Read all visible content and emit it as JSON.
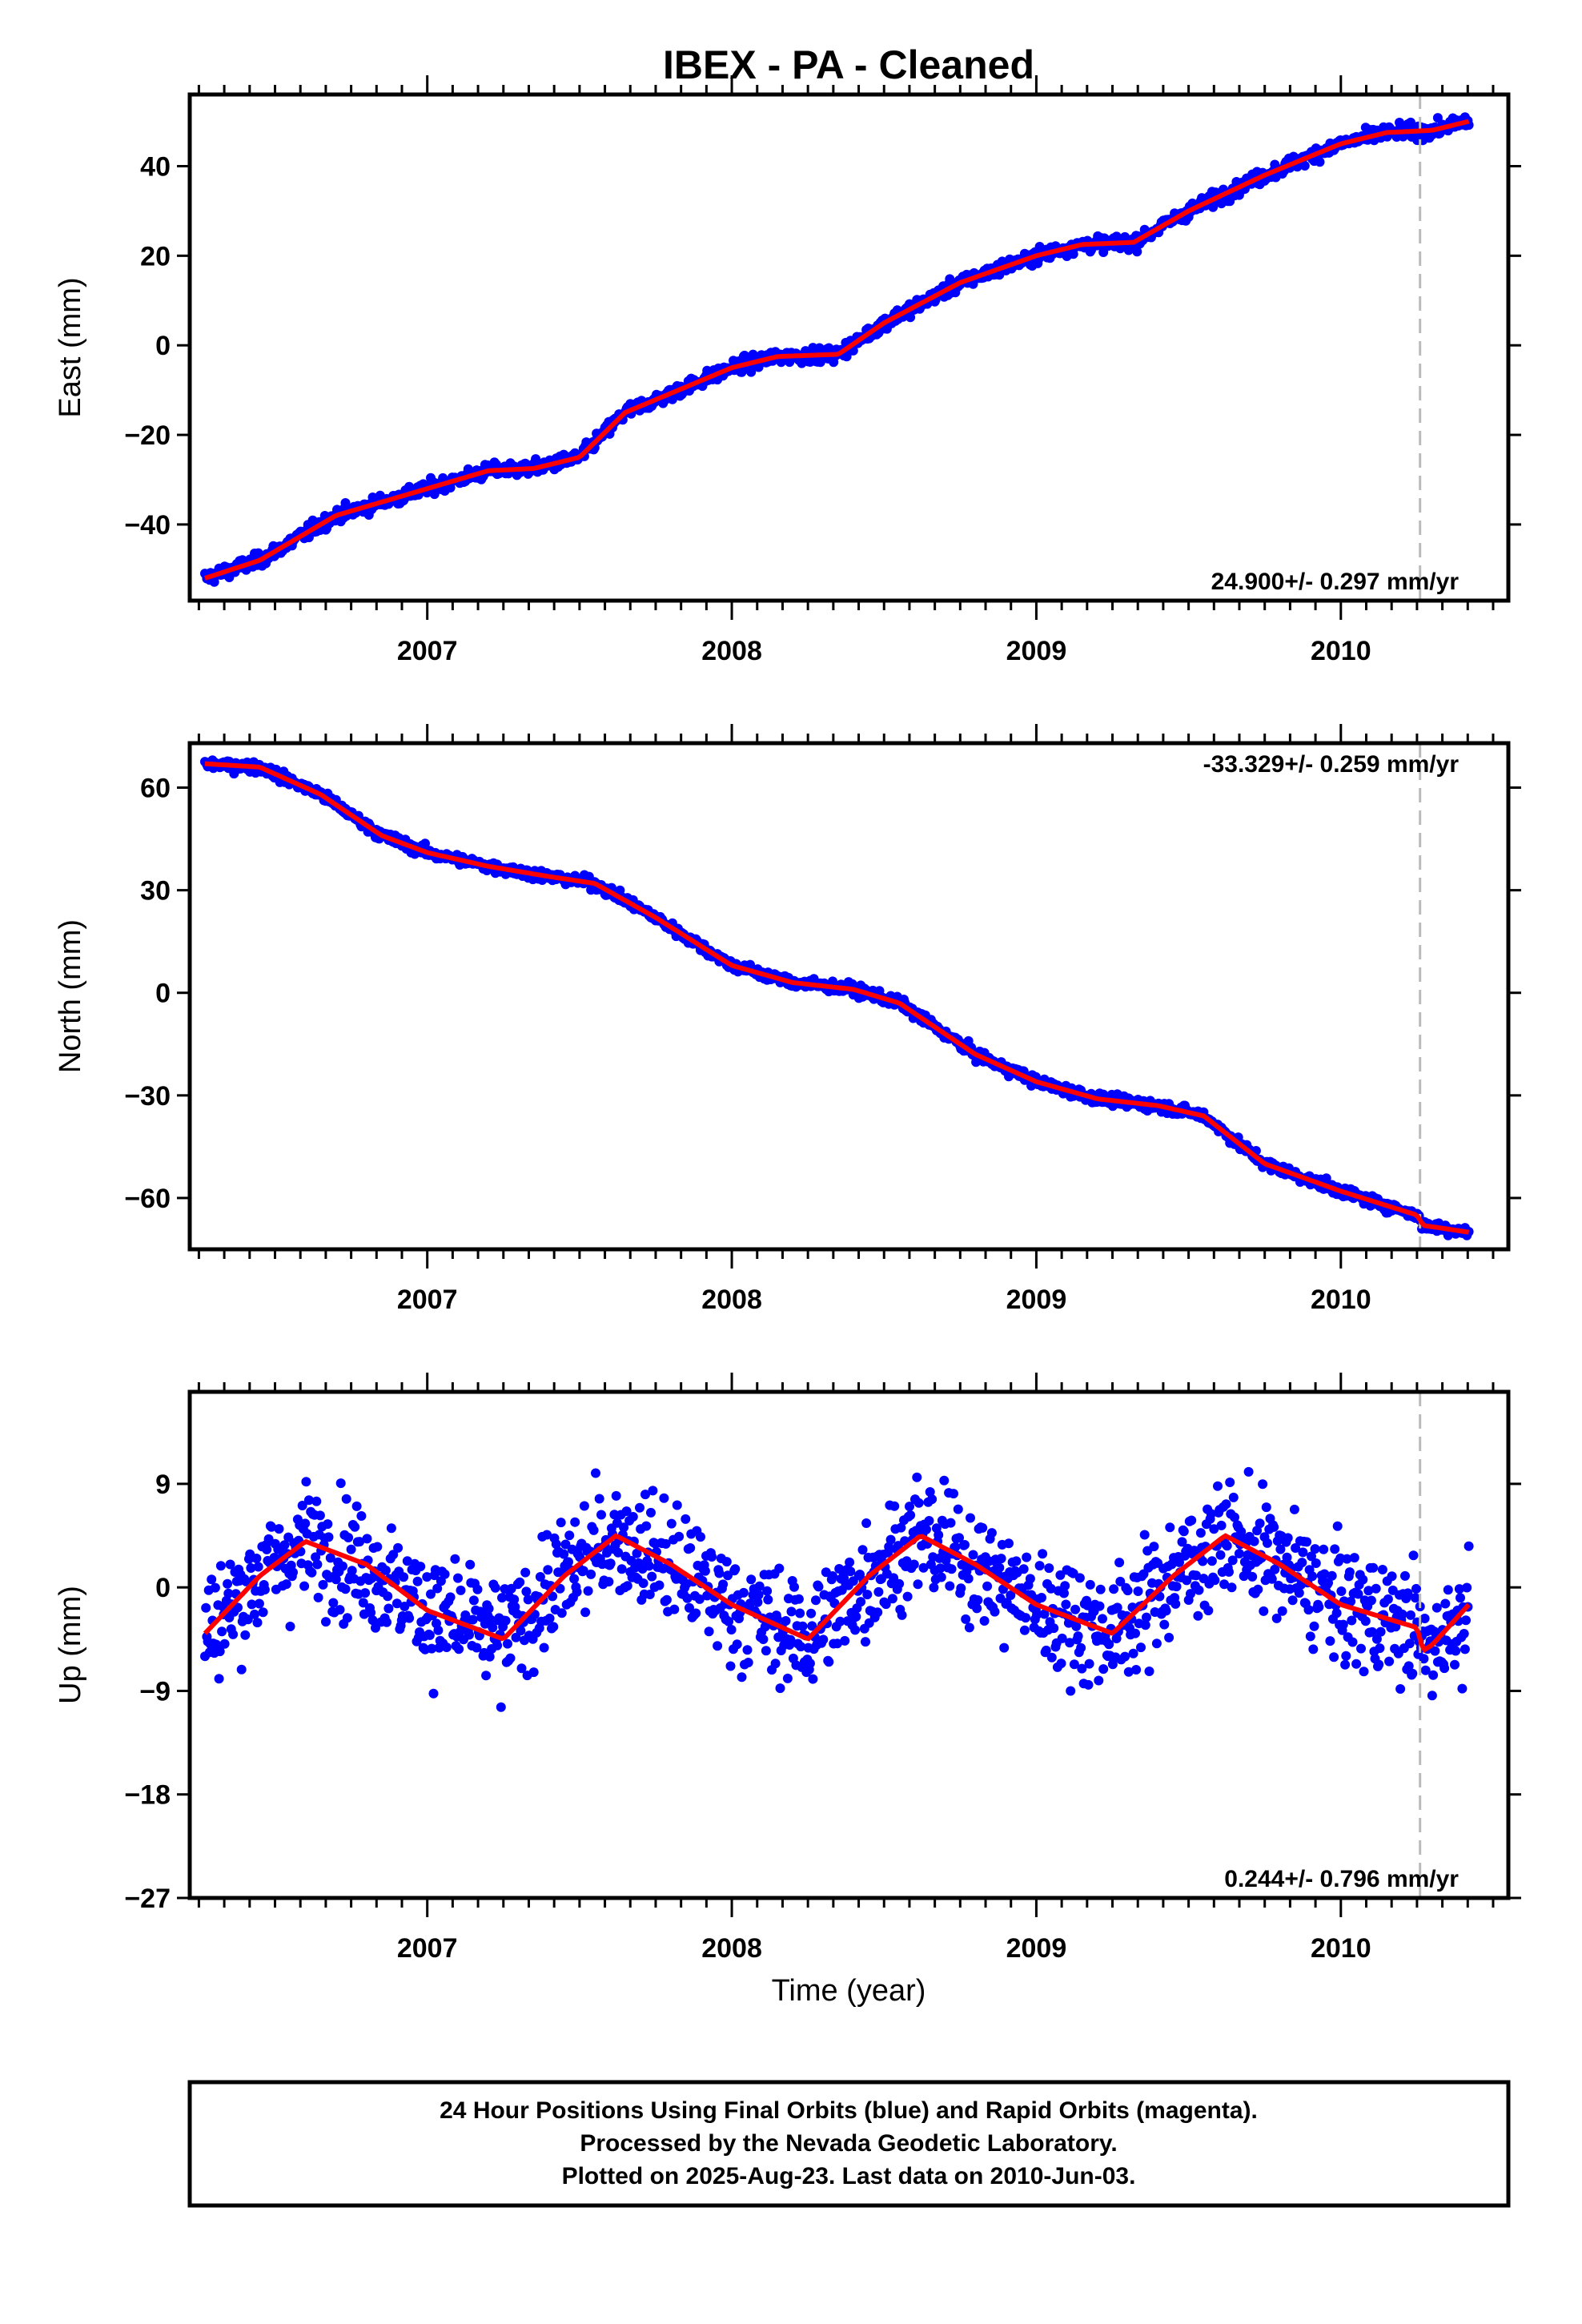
{
  "title": "IBEX  - PA - Cleaned",
  "xlabel": "Time (year)",
  "footer": {
    "line1": "24 Hour Positions Using Final Orbits (blue) and Rapid Orbits (magenta).",
    "line2": "Processed by the Nevada Geodetic Laboratory.",
    "line3": "Plotted on 2025-Aug-23. Last data on 2010-Jun-03."
  },
  "colors": {
    "points": "#0000ff",
    "model": "#ff0000",
    "step": "#bbbbbb"
  },
  "chart_data": [
    {
      "type": "scatter",
      "name": "east",
      "ylabel": "East (mm)",
      "rate": "24.900+/- 0.297 mm/yr",
      "xlim": [
        2006.22,
        2010.55
      ],
      "ylim": [
        -57,
        56
      ],
      "yticks": [
        -40,
        -20,
        0,
        20,
        40
      ],
      "xticks": [
        2007,
        2008,
        2009,
        2010
      ],
      "step_line_x": 2010.26,
      "model": {
        "x": [
          2006.27,
          2006.45,
          2006.7,
          2007.0,
          2007.2,
          2007.35,
          2007.5,
          2007.65,
          2008.0,
          2008.15,
          2008.35,
          2008.5,
          2008.75,
          2009.0,
          2009.15,
          2009.32,
          2009.5,
          2009.75,
          2010.0,
          2010.15,
          2010.3,
          2010.42
        ],
        "y": [
          -52,
          -48,
          -38,
          -32,
          -28,
          -27.5,
          -25,
          -15,
          -5,
          -2.5,
          -2,
          5,
          14,
          20,
          22.5,
          23,
          30,
          38,
          45,
          47.5,
          48,
          50
        ]
      },
      "scatter": 1.6,
      "range": [
        2006.27,
        2010.42
      ]
    },
    {
      "type": "scatter",
      "name": "north",
      "ylabel": "North (mm)",
      "rate": "-33.329+/- 0.259 mm/yr",
      "xlim": [
        2006.22,
        2010.55
      ],
      "ylim": [
        -75,
        73
      ],
      "yticks": [
        -60,
        -30,
        0,
        30,
        60
      ],
      "xticks": [
        2007,
        2008,
        2009,
        2010
      ],
      "step_line_x": 2010.26,
      "model": {
        "x": [
          2006.27,
          2006.45,
          2006.65,
          2006.85,
          2007.0,
          2007.2,
          2007.4,
          2007.55,
          2007.75,
          2008.0,
          2008.2,
          2008.4,
          2008.55,
          2008.8,
          2009.0,
          2009.2,
          2009.4,
          2009.55,
          2009.75,
          2010.0,
          2010.25,
          2010.27,
          2010.42
        ],
        "y": [
          67,
          66,
          58,
          46,
          41,
          37,
          34,
          32,
          22,
          8,
          3,
          1,
          -3,
          -18,
          -26,
          -31,
          -33,
          -36,
          -50,
          -58,
          -65,
          -68,
          -70
        ]
      },
      "scatter": 1.6,
      "range": [
        2006.27,
        2010.42
      ]
    },
    {
      "type": "scatter",
      "name": "up",
      "ylabel": "Up (mm)",
      "rate": "0.244+/- 0.796 mm/yr",
      "xlim": [
        2006.22,
        2010.55
      ],
      "ylim": [
        -27,
        17
      ],
      "yticks": [
        -27,
        -18,
        -9,
        0,
        9
      ],
      "xticks": [
        2007,
        2008,
        2009,
        2010
      ],
      "step_line_x": 2010.26,
      "model": {
        "x": [
          2006.27,
          2006.45,
          2006.6,
          2006.8,
          2007.0,
          2007.25,
          2007.45,
          2007.62,
          2007.8,
          2008.0,
          2008.25,
          2008.45,
          2008.62,
          2008.8,
          2009.0,
          2009.25,
          2009.45,
          2009.62,
          2009.8,
          2010.0,
          2010.25,
          2010.27,
          2010.3,
          2010.42
        ],
        "y": [
          -4,
          1,
          4,
          2,
          -2,
          -4.5,
          1,
          4.5,
          2,
          -1.5,
          -4.5,
          1,
          4.5,
          2,
          -1.5,
          -4,
          1,
          4.5,
          2,
          -1.5,
          -3.5,
          -5.5,
          -5,
          -1.5
        ]
      },
      "scatter": 5.0,
      "range": [
        2006.27,
        2010.42
      ]
    }
  ]
}
